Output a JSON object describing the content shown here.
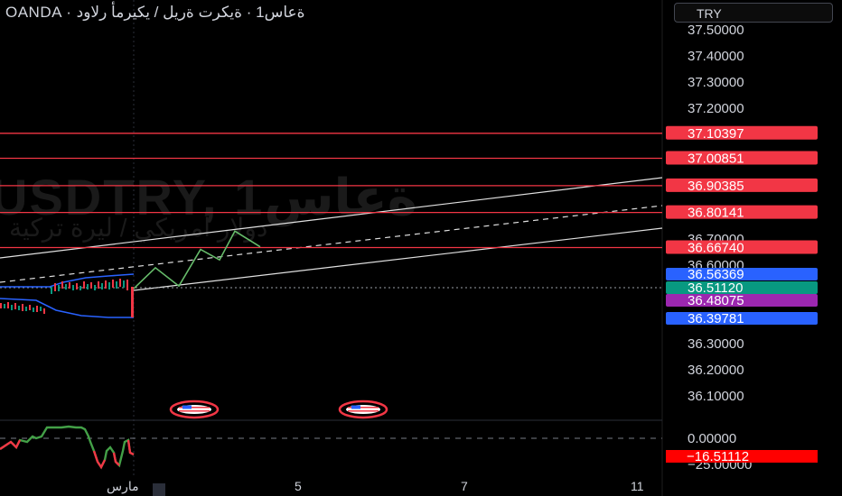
{
  "header": {
    "title": "OANDA · ةعاس1 · ةيكرت ةريل / يكيرمأ رلاود",
    "currency": "TRY"
  },
  "watermark": {
    "symbol": "USDTRY, 1ةعاس",
    "description": "دولار أمريكي / ليرة تركية"
  },
  "chart_data": {
    "type": "line",
    "price_axis_labels": [
      "37.50000",
      "37.40000",
      "37.30000",
      "37.20000",
      "36.70000",
      "36.60000",
      "36.30000",
      "36.20000",
      "36.10000"
    ],
    "horizontal_levels": [
      {
        "value": "37.10397",
        "color": "#f23645"
      },
      {
        "value": "37.00851",
        "color": "#f23645"
      },
      {
        "value": "36.90385",
        "color": "#f23645"
      },
      {
        "value": "36.80141",
        "color": "#f23645"
      },
      {
        "value": "36.66740",
        "color": "#f23645"
      }
    ],
    "price_badges": [
      {
        "value": "36.56369",
        "color": "#2962ff"
      },
      {
        "value": "36.51120",
        "color": "#089981"
      },
      {
        "value": "36.48075",
        "color": "#9c27b0"
      },
      {
        "value": "36.39781",
        "color": "#2962ff"
      }
    ],
    "projection_path": [
      36.51,
      36.59,
      36.52,
      36.66,
      36.62,
      36.73,
      36.67
    ],
    "oscillator": {
      "labels": [
        "0.00000",
        "−25.00000"
      ],
      "current_value": "−16.51112",
      "current_color": "#ff0000"
    },
    "time_axis_labels": [
      "مارس",
      "5",
      "7",
      "11"
    ],
    "event_icons": [
      "us-flag-icon",
      "us-flag-icon"
    ]
  }
}
